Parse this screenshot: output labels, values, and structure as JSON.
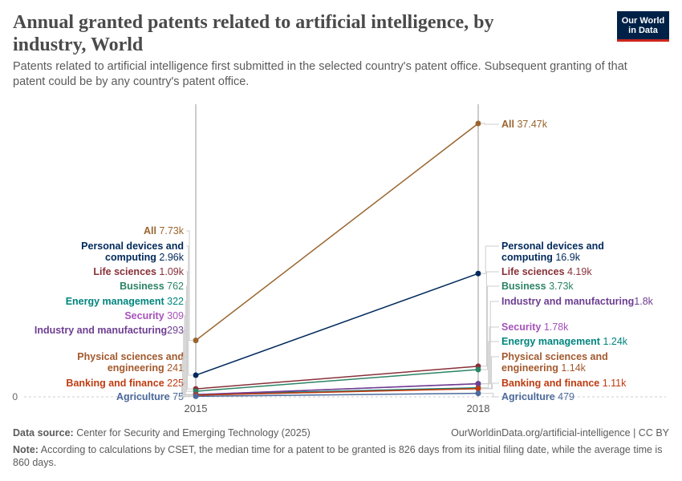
{
  "title": "Annual granted patents related to artificial intelligence, by industry, World",
  "subtitle": "Patents related to artificial intelligence first submitted in the selected country's patent office. Subsequent granting of that patent could be by any country's patent office.",
  "logo": "Our World in Data",
  "footer": {
    "source_label": "Data source:",
    "source": "Center for Security and Emerging Technology (2025)",
    "url": "OurWorldinData.org/artificial-intelligence | CC BY",
    "note_label": "Note:",
    "note": "According to calculations by CSET, the median time for a patent to be granted is 826 days from its initial filing date, while the average time is 860 days."
  },
  "chart_data": {
    "type": "line",
    "subtype": "slope",
    "x": [
      "2015",
      "2018"
    ],
    "ylim": [
      0,
      37470
    ],
    "y_tick_labels": [
      "0"
    ],
    "series": [
      {
        "name": "All",
        "values": [
          7730,
          37470
        ],
        "labels": [
          "7.73k",
          "37.47k"
        ],
        "color": "#9a652e"
      },
      {
        "name": "Personal devices and computing",
        "values": [
          2960,
          16900
        ],
        "labels": [
          "2.96k",
          "16.9k"
        ],
        "color": "#00295b"
      },
      {
        "name": "Life sciences",
        "values": [
          1090,
          4190
        ],
        "labels": [
          "1.09k",
          "4.19k"
        ],
        "color": "#883039"
      },
      {
        "name": "Business",
        "values": [
          762,
          3730
        ],
        "labels": [
          "762",
          "3.73k"
        ],
        "color": "#2c8465"
      },
      {
        "name": "Energy management",
        "values": [
          322,
          1240
        ],
        "labels": [
          "322",
          "1.24k"
        ],
        "color": "#00847e"
      },
      {
        "name": "Security",
        "values": [
          309,
          1780
        ],
        "labels": [
          "309",
          "1.78k"
        ],
        "color": "#a652ba"
      },
      {
        "name": "Industry and manufacturing",
        "values": [
          293,
          1800
        ],
        "labels": [
          "293",
          "1.8k"
        ],
        "color": "#6d3e91"
      },
      {
        "name": "Physical sciences and engineering",
        "values": [
          241,
          1140
        ],
        "labels": [
          "241",
          "1.14k"
        ],
        "color": "#a2592d"
      },
      {
        "name": "Banking and finance",
        "values": [
          225,
          1110
        ],
        "labels": [
          "225",
          "1.11k"
        ],
        "color": "#be3b10"
      },
      {
        "name": "Agriculture",
        "values": [
          75,
          479
        ],
        "labels": [
          "75",
          "479"
        ],
        "color": "#4c6a9c"
      }
    ]
  }
}
